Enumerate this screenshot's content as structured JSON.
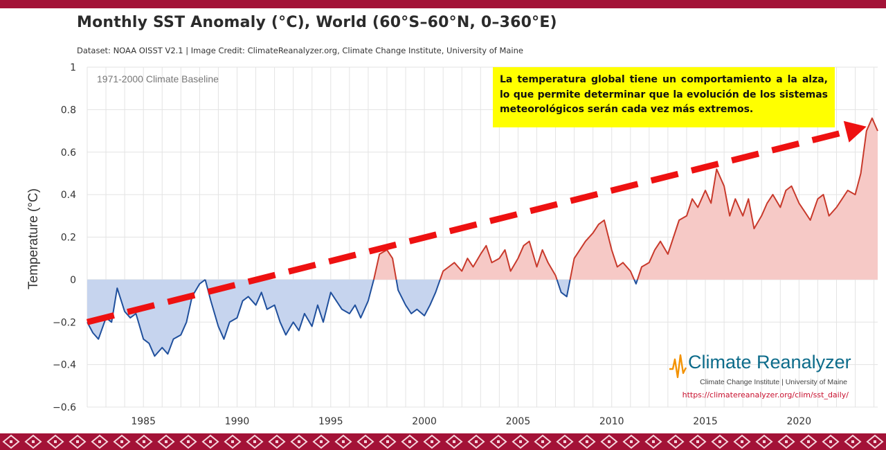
{
  "header": {
    "title": "Monthly SST Anomaly (°C), World (60°S–60°N, 0–360°E)",
    "subtitle": "Dataset: NOAA OISST V2.1 | Image Credit: ClimateReanalyzer.org, Climate Change Institute, University of Maine"
  },
  "annotation": {
    "text": "La temperatura global tiene un comportamiento a la alza, lo que permite determinar que la evolución de los sistemas meteorológicos serán cada vez más extremos."
  },
  "logo": {
    "name": "Climate Reanalyzer",
    "subtitle": "Climate Change Institute | University of Maine",
    "url": "https://climatereanalyzer.org/clim/sst_daily/"
  },
  "colors": {
    "positive": "#c8392b",
    "positive_fill": "#f6c9c6",
    "negative": "#1f4f9c",
    "negative_fill": "#c6d4ee",
    "trend": "#ee1111",
    "band": "#a31237"
  },
  "chart_data": {
    "type": "line",
    "ylabel": "Temperature (°C)",
    "baseline_label": "1971-2000 Climate Baseline",
    "xlim": [
      1982,
      2024.2
    ],
    "ylim": [
      -0.6,
      1
    ],
    "yticks": [
      -0.6,
      -0.4,
      -0.2,
      0,
      0.2,
      0.4,
      0.6,
      0.8,
      1
    ],
    "ytick_labels": [
      "−0.6",
      "−0.4",
      "−0.2",
      "0",
      "0.2",
      "0.4",
      "0.6",
      "0.8",
      "1"
    ],
    "xticks": [
      1985,
      1990,
      1995,
      2000,
      2005,
      2010,
      2015,
      2020
    ],
    "grid": true,
    "series": [
      {
        "values_x": [
          1982,
          1982.3,
          1982.6,
          1983,
          1983.3,
          1983.6,
          1984,
          1984.3,
          1984.6,
          1985,
          1985.3,
          1985.6,
          1986,
          1986.3,
          1986.6,
          1987,
          1987.3,
          1987.6,
          1988,
          1988.3,
          1988.6,
          1989,
          1989.3,
          1989.6,
          1990,
          1990.3,
          1990.6,
          1991,
          1991.3,
          1991.6,
          1992,
          1992.3,
          1992.6,
          1993,
          1993.3,
          1993.6,
          1994,
          1994.3,
          1994.6,
          1995,
          1995.3,
          1995.6,
          1996,
          1996.3,
          1996.6,
          1997,
          1997.3,
          1997.6,
          1998,
          1998.3,
          1998.6,
          1999,
          1999.3,
          1999.6,
          2000,
          2000.3,
          2000.6,
          2001,
          2001.3,
          2001.6,
          2002,
          2002.3,
          2002.6,
          2003,
          2003.3,
          2003.6,
          2004,
          2004.3,
          2004.6,
          2005,
          2005.3,
          2005.6,
          2006,
          2006.3,
          2006.6,
          2007,
          2007.3,
          2007.6,
          2008,
          2008.3,
          2008.6,
          2009,
          2009.3,
          2009.6,
          2010,
          2010.3,
          2010.6,
          2011,
          2011.3,
          2011.6,
          2012,
          2012.3,
          2012.6,
          2013,
          2013.3,
          2013.6,
          2014,
          2014.3,
          2014.6,
          2015,
          2015.3,
          2015.6,
          2016,
          2016.3,
          2016.6,
          2017,
          2017.3,
          2017.6,
          2018,
          2018.3,
          2018.6,
          2019,
          2019.3,
          2019.6,
          2020,
          2020.3,
          2020.6,
          2021,
          2021.3,
          2021.6,
          2022,
          2022.3,
          2022.6,
          2023,
          2023.3,
          2023.6,
          2023.9,
          2024.2
        ],
        "values_y": [
          -0.2,
          -0.25,
          -0.28,
          -0.18,
          -0.2,
          -0.04,
          -0.15,
          -0.18,
          -0.16,
          -0.28,
          -0.3,
          -0.36,
          -0.32,
          -0.35,
          -0.28,
          -0.26,
          -0.2,
          -0.08,
          -0.02,
          0.0,
          -0.1,
          -0.22,
          -0.28,
          -0.2,
          -0.18,
          -0.1,
          -0.08,
          -0.12,
          -0.06,
          -0.14,
          -0.12,
          -0.2,
          -0.26,
          -0.2,
          -0.24,
          -0.16,
          -0.22,
          -0.12,
          -0.2,
          -0.06,
          -0.1,
          -0.14,
          -0.16,
          -0.12,
          -0.18,
          -0.1,
          0.0,
          0.12,
          0.14,
          0.1,
          -0.05,
          -0.12,
          -0.16,
          -0.14,
          -0.17,
          -0.12,
          -0.06,
          0.04,
          0.06,
          0.08,
          0.04,
          0.1,
          0.06,
          0.12,
          0.16,
          0.08,
          0.1,
          0.14,
          0.04,
          0.1,
          0.16,
          0.18,
          0.06,
          0.14,
          0.08,
          0.02,
          -0.06,
          -0.08,
          0.1,
          0.14,
          0.18,
          0.22,
          0.26,
          0.28,
          0.14,
          0.06,
          0.08,
          0.04,
          -0.02,
          0.06,
          0.08,
          0.14,
          0.18,
          0.12,
          0.2,
          0.28,
          0.3,
          0.38,
          0.34,
          0.42,
          0.36,
          0.52,
          0.44,
          0.3,
          0.38,
          0.3,
          0.38,
          0.24,
          0.3,
          0.36,
          0.4,
          0.34,
          0.42,
          0.44,
          0.36,
          0.32,
          0.28,
          0.38,
          0.4,
          0.3,
          0.34,
          0.38,
          0.42,
          0.4,
          0.5,
          0.7,
          0.76,
          0.7
        ]
      }
    ],
    "trend": {
      "x": [
        1982,
        2023.6
      ],
      "y": [
        -0.2,
        0.72
      ]
    }
  }
}
